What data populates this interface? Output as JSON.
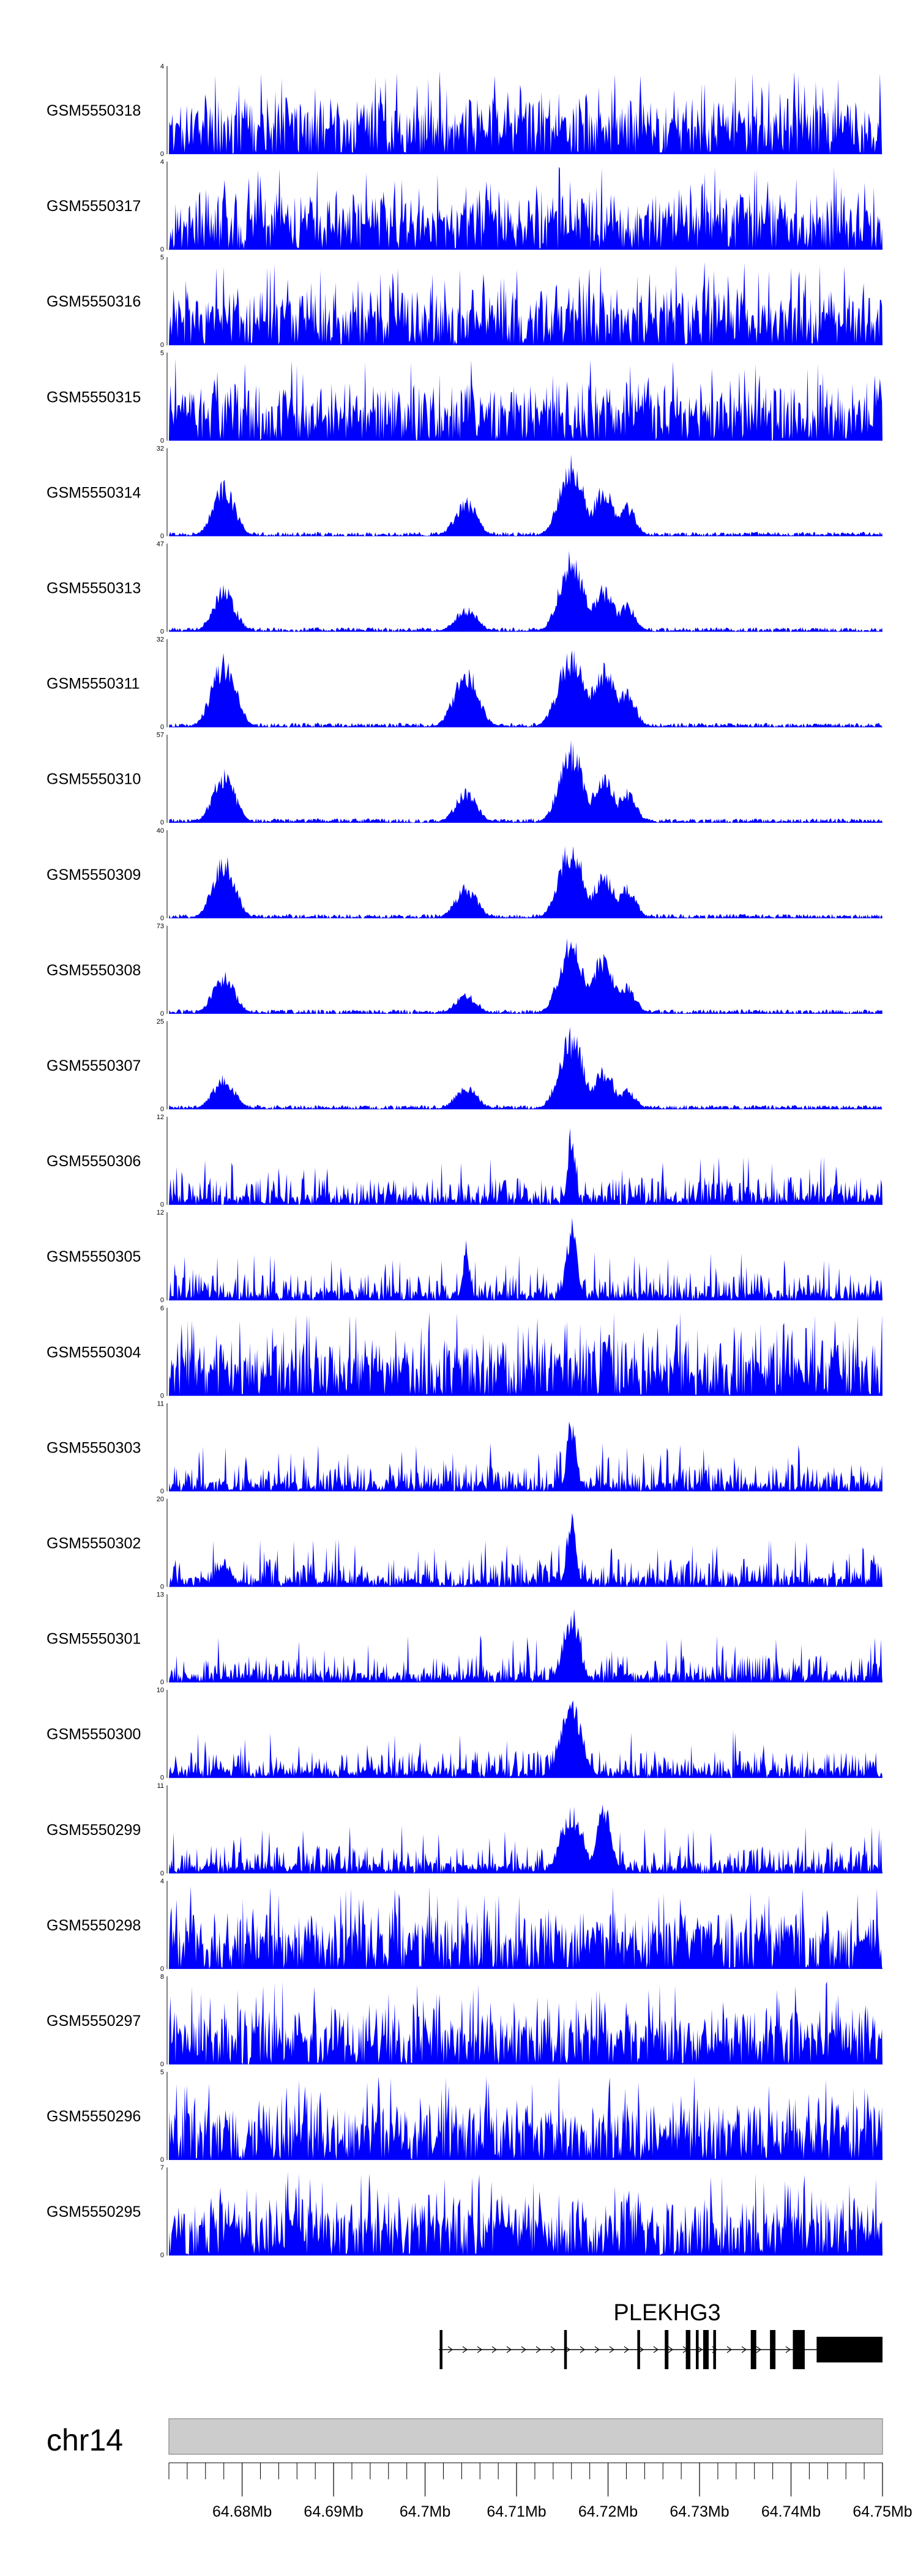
{
  "colors": {
    "signal": "#0000ff",
    "chrom_bar": "#cccccc",
    "chrom_border": "#999999",
    "axis": "#000000"
  },
  "chart_data": {
    "type": "area",
    "title": "",
    "xlabel": "",
    "x_range_mb": [
      64.672,
      64.75
    ],
    "x_ticks": [
      64.68,
      64.69,
      64.7,
      64.71,
      64.72,
      64.73,
      64.74,
      64.75
    ],
    "x_tick_labels": [
      "64.68Mb",
      "64.69Mb",
      "64.7Mb",
      "64.71Mb",
      "64.72Mb",
      "64.73Mb",
      "64.74Mb",
      "64.75Mb"
    ],
    "chromosome": "chr14",
    "series": [
      {
        "name": "GSM5550318",
        "ymax": 4,
        "profile": "noise",
        "peaks": []
      },
      {
        "name": "GSM5550317",
        "ymax": 4,
        "profile": "noise",
        "peaks": []
      },
      {
        "name": "GSM5550316",
        "ymax": 5,
        "profile": "noise",
        "peaks": []
      },
      {
        "name": "GSM5550315",
        "ymax": 5,
        "profile": "noise",
        "peaks": []
      },
      {
        "name": "GSM5550314",
        "ymax": 32,
        "profile": "peaks",
        "peaks": [
          {
            "x": 64.678,
            "h": 0.65,
            "w": 0.0012
          },
          {
            "x": 64.7045,
            "h": 0.45,
            "w": 0.0012
          },
          {
            "x": 64.716,
            "h": 0.95,
            "w": 0.0013
          },
          {
            "x": 64.7195,
            "h": 0.6,
            "w": 0.0012
          },
          {
            "x": 64.722,
            "h": 0.4,
            "w": 0.001
          }
        ]
      },
      {
        "name": "GSM5550313",
        "ymax": 47,
        "profile": "peaks",
        "peaks": [
          {
            "x": 64.678,
            "h": 0.55,
            "w": 0.0012
          },
          {
            "x": 64.7045,
            "h": 0.3,
            "w": 0.0012
          },
          {
            "x": 64.716,
            "h": 0.95,
            "w": 0.0013
          },
          {
            "x": 64.7195,
            "h": 0.55,
            "w": 0.0012
          },
          {
            "x": 64.722,
            "h": 0.35,
            "w": 0.001
          }
        ]
      },
      {
        "name": "GSM5550311",
        "ymax": 32,
        "profile": "peaks",
        "peaks": [
          {
            "x": 64.678,
            "h": 0.85,
            "w": 0.0013
          },
          {
            "x": 64.7045,
            "h": 0.75,
            "w": 0.0013
          },
          {
            "x": 64.716,
            "h": 0.95,
            "w": 0.0014
          },
          {
            "x": 64.7195,
            "h": 0.75,
            "w": 0.0013
          },
          {
            "x": 64.722,
            "h": 0.45,
            "w": 0.001
          }
        ]
      },
      {
        "name": "GSM5550310",
        "ymax": 57,
        "profile": "peaks",
        "peaks": [
          {
            "x": 64.678,
            "h": 0.65,
            "w": 0.0012
          },
          {
            "x": 64.7045,
            "h": 0.4,
            "w": 0.0012
          },
          {
            "x": 64.716,
            "h": 0.95,
            "w": 0.0013
          },
          {
            "x": 64.7195,
            "h": 0.6,
            "w": 0.0012
          },
          {
            "x": 64.722,
            "h": 0.4,
            "w": 0.001
          }
        ]
      },
      {
        "name": "GSM5550309",
        "ymax": 40,
        "profile": "peaks",
        "peaks": [
          {
            "x": 64.678,
            "h": 0.75,
            "w": 0.0012
          },
          {
            "x": 64.7045,
            "h": 0.4,
            "w": 0.0012
          },
          {
            "x": 64.716,
            "h": 0.95,
            "w": 0.0013
          },
          {
            "x": 64.7195,
            "h": 0.55,
            "w": 0.0012
          },
          {
            "x": 64.722,
            "h": 0.4,
            "w": 0.001
          }
        ]
      },
      {
        "name": "GSM5550308",
        "ymax": 73,
        "profile": "peaks",
        "peaks": [
          {
            "x": 64.678,
            "h": 0.5,
            "w": 0.0012
          },
          {
            "x": 64.7045,
            "h": 0.25,
            "w": 0.0012
          },
          {
            "x": 64.716,
            "h": 0.95,
            "w": 0.0013
          },
          {
            "x": 64.7195,
            "h": 0.75,
            "w": 0.0012
          },
          {
            "x": 64.722,
            "h": 0.35,
            "w": 0.001
          }
        ]
      },
      {
        "name": "GSM5550307",
        "ymax": 25,
        "profile": "peaks",
        "peaks": [
          {
            "x": 64.678,
            "h": 0.4,
            "w": 0.0012
          },
          {
            "x": 64.7045,
            "h": 0.3,
            "w": 0.0012
          },
          {
            "x": 64.716,
            "h": 0.95,
            "w": 0.0013
          },
          {
            "x": 64.7195,
            "h": 0.5,
            "w": 0.0012
          },
          {
            "x": 64.722,
            "h": 0.25,
            "w": 0.001
          }
        ]
      },
      {
        "name": "GSM5550306",
        "ymax": 12,
        "profile": "mixed",
        "peaks": [
          {
            "x": 64.716,
            "h": 0.95,
            "w": 0.0004
          }
        ]
      },
      {
        "name": "GSM5550305",
        "ymax": 12,
        "profile": "mixed",
        "peaks": [
          {
            "x": 64.7045,
            "h": 0.7,
            "w": 0.0004
          },
          {
            "x": 64.716,
            "h": 0.95,
            "w": 0.0006
          }
        ]
      },
      {
        "name": "GSM5550304",
        "ymax": 6,
        "profile": "noise",
        "peaks": []
      },
      {
        "name": "GSM5550303",
        "ymax": 11,
        "profile": "mixed",
        "peaks": [
          {
            "x": 64.716,
            "h": 0.95,
            "w": 0.0005
          }
        ]
      },
      {
        "name": "GSM5550302",
        "ymax": 20,
        "profile": "mixed",
        "peaks": [
          {
            "x": 64.678,
            "h": 0.35,
            "w": 0.0008
          },
          {
            "x": 64.716,
            "h": 0.95,
            "w": 0.0005
          }
        ]
      },
      {
        "name": "GSM5550301",
        "ymax": 13,
        "profile": "mixed",
        "peaks": [
          {
            "x": 64.716,
            "h": 0.9,
            "w": 0.0009
          }
        ]
      },
      {
        "name": "GSM5550300",
        "ymax": 10,
        "profile": "mixed",
        "peaks": [
          {
            "x": 64.716,
            "h": 0.9,
            "w": 0.0012
          }
        ]
      },
      {
        "name": "GSM5550299",
        "ymax": 11,
        "profile": "mixed",
        "peaks": [
          {
            "x": 64.716,
            "h": 0.8,
            "w": 0.0012
          },
          {
            "x": 64.7195,
            "h": 0.9,
            "w": 0.0008
          }
        ]
      },
      {
        "name": "GSM5550298",
        "ymax": 4,
        "profile": "noise",
        "peaks": []
      },
      {
        "name": "GSM5550297",
        "ymax": 8,
        "profile": "noise",
        "peaks": []
      },
      {
        "name": "GSM5550296",
        "ymax": 5,
        "profile": "noise",
        "peaks": []
      },
      {
        "name": "GSM5550295",
        "ymax": 7,
        "profile": "noise",
        "peaks": []
      }
    ],
    "gene": {
      "name": "PLEKHG3",
      "start_mb": 64.7015,
      "end_mb": 64.75,
      "exons": [
        {
          "s": 64.7016,
          "e": 64.7019,
          "tall": true
        },
        {
          "s": 64.7152,
          "e": 64.7155,
          "tall": true
        },
        {
          "s": 64.7232,
          "e": 64.7235,
          "tall": true
        },
        {
          "s": 64.7262,
          "e": 64.7266,
          "tall": true
        },
        {
          "s": 64.7285,
          "e": 64.729,
          "tall": true
        },
        {
          "s": 64.7296,
          "e": 64.7299,
          "tall": true
        },
        {
          "s": 64.7304,
          "e": 64.731,
          "tall": true
        },
        {
          "s": 64.7315,
          "e": 64.7318,
          "tall": true
        },
        {
          "s": 64.7356,
          "e": 64.7362,
          "tall": true
        },
        {
          "s": 64.7377,
          "e": 64.7383,
          "tall": true
        },
        {
          "s": 64.7402,
          "e": 64.7415,
          "tall": true
        },
        {
          "s": 64.7428,
          "e": 64.75,
          "tall": false
        }
      ]
    }
  }
}
